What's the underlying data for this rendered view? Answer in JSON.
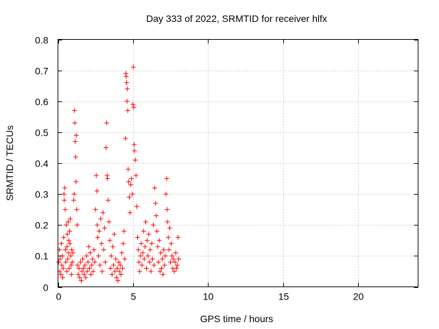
{
  "chart_data": {
    "type": "scatter",
    "title": "Day 333 of 2022, SRMTID for receiver hlfx",
    "xlabel": "GPS time / hours",
    "ylabel": "SRMTID / TECUs",
    "xlim": [
      0,
      24
    ],
    "ylim": [
      0,
      0.8
    ],
    "xticks": [
      0,
      5,
      10,
      15,
      20
    ],
    "yticks": [
      0,
      0.1,
      0.2,
      0.3,
      0.4,
      0.5,
      0.6,
      0.7,
      0.8
    ],
    "xtick_labels": [
      "0",
      "5",
      "10",
      "15",
      "20"
    ],
    "ytick_labels": [
      "0",
      "0.1",
      "0.2",
      "0.3",
      "0.4",
      "0.5",
      "0.6",
      "0.7",
      "0.8"
    ],
    "grid": true,
    "marker": "+",
    "color": "#ff0000",
    "series": [
      {
        "name": "SRMTID",
        "points": [
          [
            0.05,
            0.08
          ],
          [
            0.1,
            0.12
          ],
          [
            0.12,
            0.05
          ],
          [
            0.15,
            0.09
          ],
          [
            0.2,
            0.04
          ],
          [
            0.22,
            0.14
          ],
          [
            0.25,
            0.07
          ],
          [
            0.3,
            0.1
          ],
          [
            0.32,
            0.03
          ],
          [
            0.35,
            0.06
          ],
          [
            0.38,
            0.16
          ],
          [
            0.4,
            0.3
          ],
          [
            0.42,
            0.28
          ],
          [
            0.45,
            0.32
          ],
          [
            0.48,
            0.25
          ],
          [
            0.5,
            0.12
          ],
          [
            0.52,
            0.08
          ],
          [
            0.55,
            0.2
          ],
          [
            0.58,
            0.05
          ],
          [
            0.6,
            0.13
          ],
          [
            0.62,
            0.17
          ],
          [
            0.65,
            0.09
          ],
          [
            0.68,
            0.21
          ],
          [
            0.7,
            0.11
          ],
          [
            0.72,
            0.15
          ],
          [
            0.75,
            0.06
          ],
          [
            0.78,
            0.18
          ],
          [
            0.8,
            0.14
          ],
          [
            0.82,
            0.22
          ],
          [
            0.85,
            0.1
          ],
          [
            0.88,
            0.07
          ],
          [
            0.9,
            0.04
          ],
          [
            0.92,
            0.12
          ],
          [
            0.95,
            0.08
          ],
          [
            1.0,
            0.11
          ],
          [
            1.05,
            0.28
          ],
          [
            1.08,
            0.3
          ],
          [
            1.1,
            0.57
          ],
          [
            1.12,
            0.53
          ],
          [
            1.15,
            0.47
          ],
          [
            1.18,
            0.42
          ],
          [
            1.2,
            0.34
          ],
          [
            1.22,
            0.49
          ],
          [
            1.25,
            0.25
          ],
          [
            1.28,
            0.2
          ],
          [
            1.3,
            0.07
          ],
          [
            1.35,
            0.04
          ],
          [
            1.4,
            0.06
          ],
          [
            1.45,
            0.03
          ],
          [
            1.5,
            0.08
          ],
          [
            1.55,
            0.02
          ],
          [
            1.6,
            0.05
          ],
          [
            1.65,
            0.09
          ],
          [
            1.7,
            0.06
          ],
          [
            1.75,
            0.04
          ],
          [
            1.8,
            0.07
          ],
          [
            1.85,
            0.03
          ],
          [
            1.9,
            0.1
          ],
          [
            1.95,
            0.05
          ],
          [
            2.0,
            0.08
          ],
          [
            2.05,
            0.13
          ],
          [
            2.1,
            0.06
          ],
          [
            2.15,
            0.11
          ],
          [
            2.2,
            0.04
          ],
          [
            2.25,
            0.07
          ],
          [
            2.3,
            0.09
          ],
          [
            2.35,
            0.05
          ],
          [
            2.4,
            0.12
          ],
          [
            2.45,
            0.08
          ],
          [
            2.5,
            0.25
          ],
          [
            2.55,
            0.36
          ],
          [
            2.6,
            0.31
          ],
          [
            2.62,
            0.2
          ],
          [
            2.65,
            0.16
          ],
          [
            2.7,
            0.1
          ],
          [
            2.75,
            0.18
          ],
          [
            2.8,
            0.07
          ],
          [
            2.85,
            0.22
          ],
          [
            2.9,
            0.14
          ],
          [
            2.95,
            0.05
          ],
          [
            3.0,
            0.24
          ],
          [
            3.05,
            0.12
          ],
          [
            3.1,
            0.19
          ],
          [
            3.15,
            0.08
          ],
          [
            3.2,
            0.45
          ],
          [
            3.25,
            0.53
          ],
          [
            3.28,
            0.36
          ],
          [
            3.3,
            0.35
          ],
          [
            3.35,
            0.28
          ],
          [
            3.4,
            0.21
          ],
          [
            3.45,
            0.15
          ],
          [
            3.5,
            0.06
          ],
          [
            3.55,
            0.1
          ],
          [
            3.6,
            0.04
          ],
          [
            3.65,
            0.13
          ],
          [
            3.7,
            0.07
          ],
          [
            3.75,
            0.17
          ],
          [
            3.8,
            0.05
          ],
          [
            3.85,
            0.09
          ],
          [
            3.9,
            0.03
          ],
          [
            3.95,
            0.06
          ],
          [
            4.0,
            0.02
          ],
          [
            4.05,
            0.08
          ],
          [
            4.1,
            0.05
          ],
          [
            4.15,
            0.07
          ],
          [
            4.2,
            0.04
          ],
          [
            4.25,
            0.11
          ],
          [
            4.3,
            0.06
          ],
          [
            4.35,
            0.14
          ],
          [
            4.4,
            0.18
          ],
          [
            4.45,
            0.09
          ],
          [
            4.5,
            0.48
          ],
          [
            4.52,
            0.69
          ],
          [
            4.55,
            0.68
          ],
          [
            4.58,
            0.66
          ],
          [
            4.6,
            0.6
          ],
          [
            4.62,
            0.64
          ],
          [
            4.65,
            0.57
          ],
          [
            4.68,
            0.38
          ],
          [
            4.7,
            0.34
          ],
          [
            4.75,
            0.29
          ],
          [
            4.8,
            0.24
          ],
          [
            4.85,
            0.33
          ],
          [
            4.9,
            0.35
          ],
          [
            4.95,
            0.3
          ],
          [
            5.0,
            0.59
          ],
          [
            5.02,
            0.71
          ],
          [
            5.05,
            0.58
          ],
          [
            5.08,
            0.46
          ],
          [
            5.1,
            0.44
          ],
          [
            5.15,
            0.41
          ],
          [
            5.2,
            0.36
          ],
          [
            5.25,
            0.26
          ],
          [
            5.3,
            0.16
          ],
          [
            5.35,
            0.12
          ],
          [
            5.4,
            0.08
          ],
          [
            5.45,
            0.05
          ],
          [
            5.5,
            0.1
          ],
          [
            5.55,
            0.14
          ],
          [
            5.6,
            0.07
          ],
          [
            5.65,
            0.11
          ],
          [
            5.7,
            0.18
          ],
          [
            5.75,
            0.09
          ],
          [
            5.8,
            0.13
          ],
          [
            5.85,
            0.21
          ],
          [
            5.9,
            0.06
          ],
          [
            5.95,
            0.15
          ],
          [
            6.0,
            0.1
          ],
          [
            6.05,
            0.17
          ],
          [
            6.1,
            0.08
          ],
          [
            6.15,
            0.12
          ],
          [
            6.2,
            0.05
          ],
          [
            6.25,
            0.14
          ],
          [
            6.3,
            0.09
          ],
          [
            6.35,
            0.2
          ],
          [
            6.4,
            0.07
          ],
          [
            6.45,
            0.32
          ],
          [
            6.5,
            0.27
          ],
          [
            6.55,
            0.23
          ],
          [
            6.6,
            0.18
          ],
          [
            6.65,
            0.13
          ],
          [
            6.7,
            0.08
          ],
          [
            6.75,
            0.15
          ],
          [
            6.8,
            0.05
          ],
          [
            6.85,
            0.11
          ],
          [
            6.9,
            0.06
          ],
          [
            6.95,
            0.09
          ],
          [
            7.0,
            0.04
          ],
          [
            7.05,
            0.12
          ],
          [
            7.1,
            0.07
          ],
          [
            7.15,
            0.1
          ],
          [
            7.2,
            0.3
          ],
          [
            7.25,
            0.35
          ],
          [
            7.28,
            0.25
          ],
          [
            7.3,
            0.21
          ],
          [
            7.35,
            0.16
          ],
          [
            7.4,
            0.12
          ],
          [
            7.45,
            0.19
          ],
          [
            7.5,
            0.08
          ],
          [
            7.55,
            0.14
          ],
          [
            7.6,
            0.1
          ],
          [
            7.65,
            0.06
          ],
          [
            7.7,
            0.09
          ],
          [
            7.75,
            0.05
          ],
          [
            7.8,
            0.08
          ],
          [
            7.85,
            0.11
          ],
          [
            7.9,
            0.06
          ],
          [
            7.95,
            0.07
          ],
          [
            8.0,
            0.16
          ],
          [
            8.05,
            0.09
          ]
        ]
      }
    ]
  }
}
